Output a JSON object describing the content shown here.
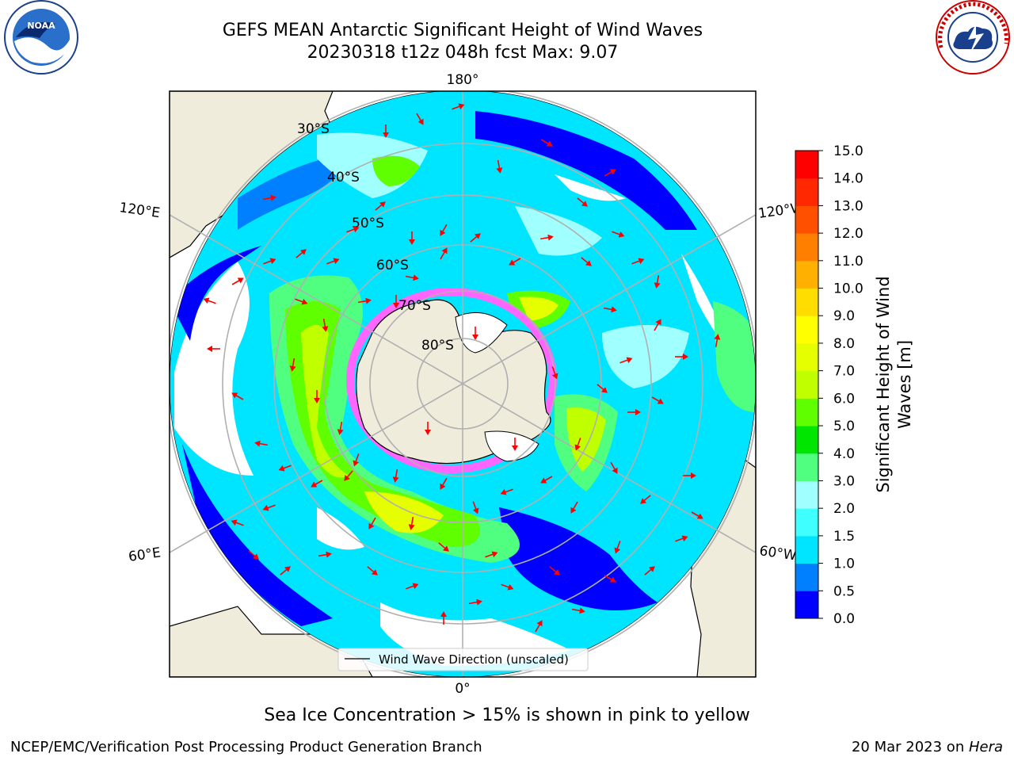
{
  "title": {
    "line1": "GEFS MEAN Antarctic Significant Height of Wind Waves",
    "line2": "20230318 t12z 048h fcst   Max: 9.07"
  },
  "map": {
    "projection": "south-polar-stereographic",
    "longitude_labels": {
      "top": "180°",
      "bottom": "0°",
      "upper_left": "120°E",
      "lower_left": "60°E",
      "upper_right": "120°W",
      "lower_right": "60°W"
    },
    "latitude_labels": [
      "30°S",
      "40°S",
      "50°S",
      "60°S",
      "70°S",
      "80°S"
    ],
    "legend_label": "Wind Wave Direction (unscaled)",
    "arrow_color": "#ff0000",
    "land_color": "#efecdc",
    "sea_ice_color": "#ff66ff"
  },
  "colorbar": {
    "title_line1": "Significant Height of Wind",
    "title_line2": "Waves [m]",
    "ticks": [
      "0.0",
      "0.5",
      "1.0",
      "1.5",
      "2.0",
      "3.0",
      "4.0",
      "5.0",
      "6.0",
      "7.0",
      "8.0",
      "9.0",
      "10.0",
      "11.0",
      "12.0",
      "13.0",
      "14.0",
      "15.0"
    ],
    "colors": [
      "#0000ff",
      "#0080ff",
      "#00e5ff",
      "#40ffff",
      "#a0ffff",
      "#50ff80",
      "#00e600",
      "#60ff00",
      "#c0ff00",
      "#e6ff00",
      "#ffff00",
      "#ffdd00",
      "#ffb000",
      "#ff8000",
      "#ff5000",
      "#ff2800",
      "#ff0000"
    ]
  },
  "caption": "Sea Ice Concentration > 15% is shown in pink to yellow",
  "footer": {
    "left": "NCEP/EMC/Verification Post Processing Product Generation Branch",
    "right_date": "20 Mar 2023 on ",
    "right_host": "Hera"
  },
  "logos": {
    "left": "NOAA",
    "right": "NATIONAL WEATHER SERVICE"
  }
}
